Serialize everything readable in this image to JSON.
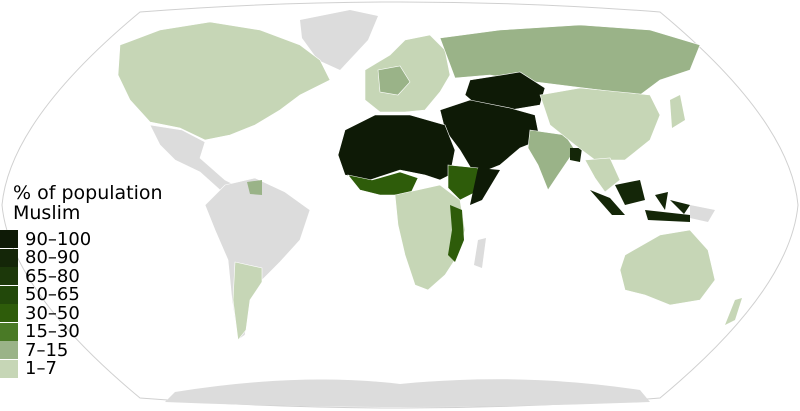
{
  "legend": {
    "title_line1": "% of population",
    "title_line2": "Muslim",
    "classes": [
      {
        "label": "90–100",
        "color": "#0e1a06"
      },
      {
        "label": "80–90",
        "color": "#142608"
      },
      {
        "label": "65–80",
        "color": "#1c380a"
      },
      {
        "label": "50–65",
        "color": "#22480a"
      },
      {
        "label": "30–50",
        "color": "#2e5c0a"
      },
      {
        "label": "15–30",
        "color": "#4a7a26"
      },
      {
        "label": "7–15",
        "color": "#9ab388"
      },
      {
        "label": "1–7",
        "color": "#c6d6b6"
      }
    ],
    "no_data_color": "#dcdcdc"
  },
  "map_data": {
    "projection": "Robinson",
    "regions": [
      {
        "region": "North America",
        "class": "1–7"
      },
      {
        "region": "Greenland",
        "class": "none"
      },
      {
        "region": "Mexico & Central America",
        "class": "none"
      },
      {
        "region": "South America",
        "class": "none"
      },
      {
        "region": "Argentina",
        "class": "1–7"
      },
      {
        "region": "Guyana & Suriname",
        "class": "7–15"
      },
      {
        "region": "Europe",
        "class": "1–7"
      },
      {
        "region": "Russia",
        "class": "7–15"
      },
      {
        "region": "Central Asia",
        "class": "90–100"
      },
      {
        "region": "Middle East",
        "class": "90–100"
      },
      {
        "region": "North Africa & Sahel",
        "class": "90–100"
      },
      {
        "region": "West Africa coast",
        "class": "30–50"
      },
      {
        "region": "Ethiopia",
        "class": "30–50"
      },
      {
        "region": "Central & Southern Africa",
        "class": "1–7"
      },
      {
        "region": "Tanzania & Mozambique coast",
        "class": "30–50"
      },
      {
        "region": "India",
        "class": "7–15"
      },
      {
        "region": "Bangladesh",
        "class": "80–90"
      },
      {
        "region": "China",
        "class": "1–7"
      },
      {
        "region": "Indonesia & Malaysia",
        "class": "80–90"
      },
      {
        "region": "Australia",
        "class": "1–7"
      },
      {
        "region": "Antarctica",
        "class": "none"
      }
    ]
  }
}
